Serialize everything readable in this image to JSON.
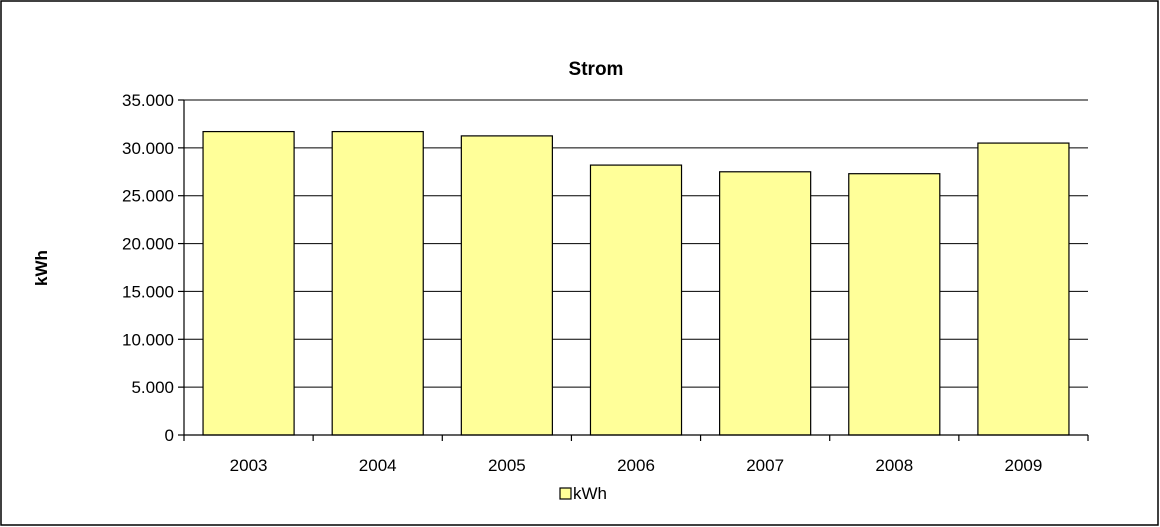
{
  "chart_data": {
    "type": "bar",
    "title": "Strom",
    "xlabel": "",
    "ylabel": "kWh",
    "categories": [
      "2003",
      "2004",
      "2005",
      "2006",
      "2007",
      "2008",
      "2009"
    ],
    "series": [
      {
        "name": "kWh",
        "color": "#FFFF99",
        "values": [
          31700,
          31700,
          31250,
          28200,
          27500,
          27300,
          30500
        ]
      }
    ],
    "ylim": [
      0,
      35000
    ],
    "yticks": [
      0,
      5000,
      10000,
      15000,
      20000,
      25000,
      30000,
      35000
    ],
    "ytick_labels": [
      "0",
      "5.000",
      "10.000",
      "15.000",
      "20.000",
      "25.000",
      "30.000",
      "35.000"
    ],
    "grid": true,
    "legend_position": "bottom"
  }
}
